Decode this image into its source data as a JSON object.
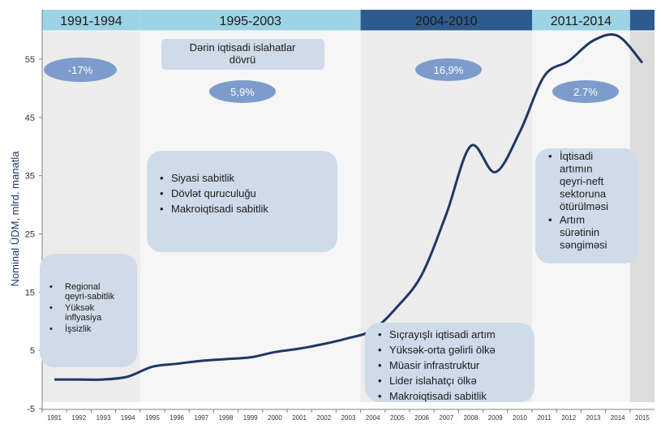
{
  "chart_data": {
    "type": "line",
    "ylabel": "Nominal ÜDM, mlrd. manatla",
    "ylim": [
      -5,
      60
    ],
    "yticks": [
      -5,
      5,
      15,
      25,
      35,
      45,
      55
    ],
    "x_categories": [
      "1991",
      "1992",
      "1993",
      "1994",
      "1995",
      "1996",
      "1997",
      "1998",
      "1999",
      "2000",
      "2001",
      "2002",
      "2003",
      "2004",
      "2005",
      "2006",
      "2007",
      "2008",
      "2009",
      "2010",
      "2011",
      "2012",
      "2013",
      "2014",
      "2015"
    ],
    "series": [
      {
        "color": "#1f3864",
        "x": [
          "1991",
          "1992",
          "1993",
          "1994",
          "1995",
          "1996",
          "1997",
          "1998",
          "1999",
          "2000",
          "2001",
          "2002",
          "2003",
          "2004",
          "2005",
          "2006",
          "2007",
          "2008",
          "2009",
          "2010",
          "2011",
          "2012",
          "2013",
          "2014",
          "2015"
        ],
        "values": [
          0,
          0,
          0,
          0.5,
          2.2,
          2.7,
          3.2,
          3.5,
          3.8,
          4.7,
          5.3,
          6.1,
          7.1,
          8.5,
          12.5,
          18.0,
          28.4,
          40.1,
          35.6,
          42.5,
          52.1,
          54.7,
          58.2,
          59.0,
          54.4
        ]
      }
    ],
    "periods": [
      {
        "label": "1991-1994",
        "from": "1991",
        "to": "1994",
        "header_color": "#9dd3e4",
        "band_color": "#ececec"
      },
      {
        "label": "1995-2003",
        "from": "1995",
        "to": "2003",
        "header_color": "#9dd3e4",
        "band_color": "#f6f6f6"
      },
      {
        "label": "2004-2010",
        "from": "2004",
        "to": "2010",
        "header_color": "#2e5b8e",
        "band_color": "#ececec"
      },
      {
        "label": "2011-2014",
        "from": "2011",
        "to": "2014",
        "header_color": "#9dd3e4",
        "band_color": "#f6f6f6"
      },
      {
        "label": "",
        "from": "2015",
        "to": "2015",
        "header_color": "#2e5b8e",
        "band_color": "#dcdcdc"
      }
    ],
    "growth_labels": [
      {
        "period": "1991-1994",
        "text": "-17%"
      },
      {
        "period": "1995-2003",
        "text": "5,9%"
      },
      {
        "period": "2004-2010",
        "text": "16,9%"
      },
      {
        "period": "2011-2014",
        "text": "2.7%"
      }
    ],
    "annotation_title": [
      "Dərin iqtisadi islahatlar",
      "dövrü"
    ],
    "notes": [
      {
        "period": "1991-1994",
        "items": [
          "Regional qeyri-sabitlik",
          "Yüksək inflyasiya",
          "İşsizlik"
        ]
      },
      {
        "period": "1995-2003",
        "items": [
          "Siyasi sabitlik",
          "Dövlət quruculuğu",
          "Makroiqtisadi sabitlik"
        ]
      },
      {
        "period": "2004-2010",
        "items": [
          "Sıçrayışlı iqtisadi artım",
          "Yüksək-orta gəlirli ölkə",
          "Müasir infrastruktur",
          "Lider islahatçı ölkə",
          "Makroiqtisadi sabitlik"
        ]
      },
      {
        "period": "2011-2014",
        "items": [
          "İqtisadi artımın qeyri-neft sektoruna ötürülməsi",
          "Artım sürətinin səngiməsi"
        ]
      }
    ]
  }
}
